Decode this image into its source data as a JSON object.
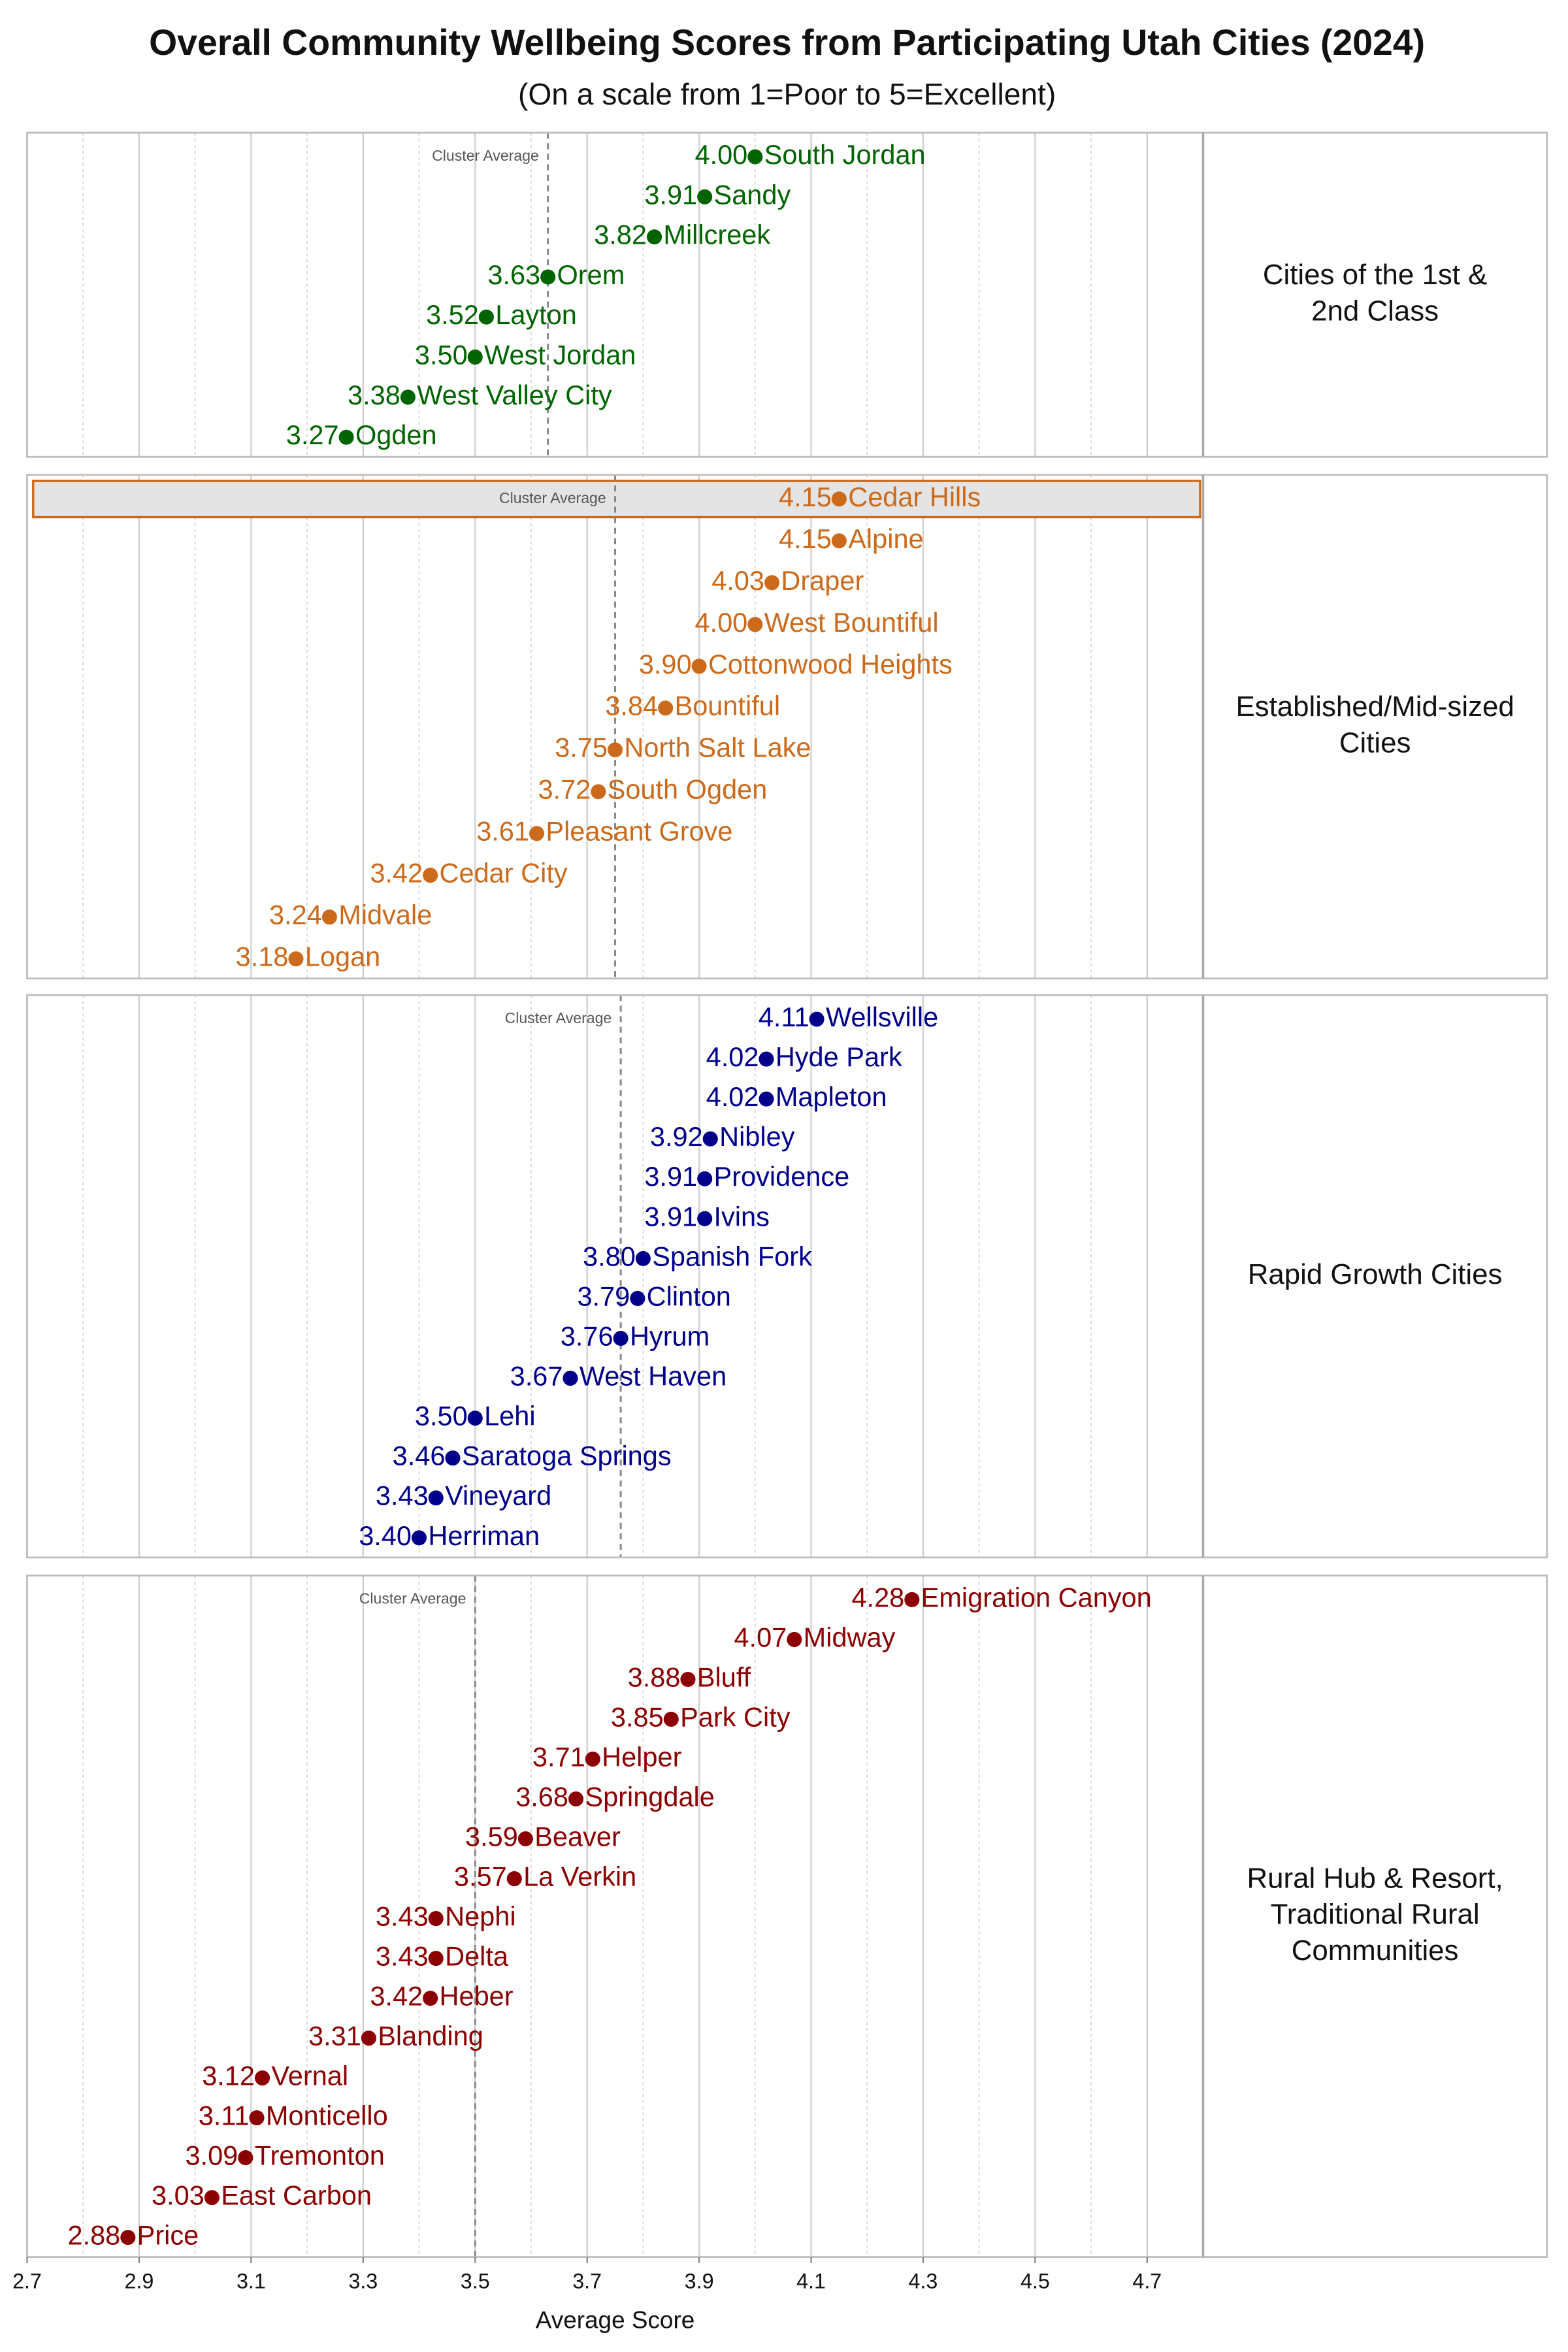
{
  "chart_data": {
    "type": "dot",
    "title": "Overall Community Wellbeing Scores from Participating Utah Cities (2024)",
    "subtitle": "(On a scale from 1=Poor to 5=Excellent)",
    "x_label": "Average Score",
    "xlim": [
      2.7,
      4.8
    ],
    "xticks": [
      2.7,
      2.9,
      3.1,
      3.3,
      3.5,
      3.7,
      3.9,
      4.1,
      4.3,
      4.5,
      4.7
    ],
    "xminorticks": [
      2.8,
      3.0,
      3.2,
      3.4,
      3.6,
      3.8,
      4.0,
      4.2,
      4.4,
      4.6
    ],
    "grid": true,
    "average_label": "Cluster Average",
    "panels": [
      {
        "label": [
          "Cities of the 1st &",
          "2nd Class"
        ],
        "color": "#006400",
        "average": 3.63,
        "categories": [
          "South Jordan",
          "Sandy",
          "Millcreek",
          "Orem",
          "Layton",
          "West Jordan",
          "West Valley City",
          "Ogden"
        ],
        "values": [
          4.0,
          3.91,
          3.82,
          3.63,
          3.52,
          3.5,
          3.38,
          3.27
        ],
        "value_labels": [
          "4.00",
          "3.91",
          "3.82",
          "3.63",
          "3.52",
          "3.50",
          "3.38",
          "3.27"
        ]
      },
      {
        "label": [
          "Established/Mid-sized",
          "Cities"
        ],
        "color": "#cc6a1c",
        "average": 3.75,
        "highlighted": 0,
        "categories": [
          "Cedar Hills",
          "Alpine",
          "Draper",
          "West Bountiful",
          "Cottonwood Heights",
          "Bountiful",
          "North Salt Lake",
          "South Ogden",
          "Pleasant Grove",
          "Cedar City",
          "Midvale",
          "Logan"
        ],
        "values": [
          4.15,
          4.15,
          4.03,
          4.0,
          3.9,
          3.84,
          3.75,
          3.72,
          3.61,
          3.42,
          3.24,
          3.18
        ],
        "value_labels": [
          "4.15",
          "4.15",
          "4.03",
          "4.00",
          "3.90",
          "3.84",
          "3.75",
          "3.72",
          "3.61",
          "3.42",
          "3.24",
          "3.18"
        ]
      },
      {
        "label": [
          "Rapid Growth Cities"
        ],
        "color": "#00008b",
        "average": 3.76,
        "categories": [
          "Wellsville",
          "Hyde Park",
          "Mapleton",
          "Nibley",
          "Providence",
          "Ivins",
          "Spanish Fork",
          "Clinton",
          "Hyrum",
          "West Haven",
          "Lehi",
          "Saratoga Springs",
          "Vineyard",
          "Herriman"
        ],
        "values": [
          4.11,
          4.02,
          4.02,
          3.92,
          3.91,
          3.91,
          3.8,
          3.79,
          3.76,
          3.67,
          3.5,
          3.46,
          3.43,
          3.4
        ],
        "value_labels": [
          "4.11",
          "4.02",
          "4.02",
          "3.92",
          "3.91",
          "3.91",
          "3.80",
          "3.79",
          "3.76",
          "3.67",
          "3.50",
          "3.46",
          "3.43",
          "3.40"
        ]
      },
      {
        "label": [
          "Rural Hub & Resort,",
          "Traditional Rural",
          "Communities"
        ],
        "color": "#8b0000",
        "average": 3.5,
        "categories": [
          "Emigration Canyon",
          "Midway",
          "Bluff",
          "Park City",
          "Helper",
          "Springdale",
          "Beaver",
          "La Verkin",
          "Nephi",
          "Delta",
          "Heber",
          "Blanding",
          "Vernal",
          "Monticello",
          "Tremonton",
          "East Carbon",
          "Price"
        ],
        "values": [
          4.28,
          4.07,
          3.88,
          3.85,
          3.71,
          3.68,
          3.59,
          3.57,
          3.43,
          3.43,
          3.42,
          3.31,
          3.12,
          3.11,
          3.09,
          3.03,
          2.88
        ],
        "value_labels": [
          "4.28",
          "4.07",
          "3.88",
          "3.85",
          "3.71",
          "3.68",
          "3.59",
          "3.57",
          "3.43",
          "3.43",
          "3.42",
          "3.31",
          "3.12",
          "3.11",
          "3.09",
          "3.03",
          "2.88"
        ]
      }
    ]
  }
}
